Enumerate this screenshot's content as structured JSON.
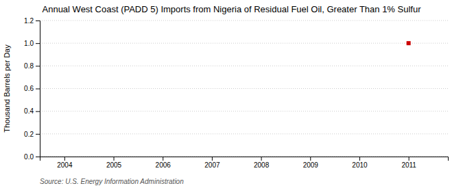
{
  "chart_data": {
    "type": "scatter",
    "title": "Annual West Coast (PADD 5) Imports from Nigeria of Residual Fuel Oil, Greater Than 1% Sulfur",
    "ylabel": "Thousand Barrels per Day",
    "source": "Source: U.S. Energy Information Administration",
    "x": [
      2011
    ],
    "values": [
      1.0
    ],
    "color": "#cc0000",
    "marker": "square",
    "xlim": [
      2003.5,
      2011.8
    ],
    "xticks": [
      2004,
      2005,
      2006,
      2007,
      2008,
      2009,
      2010,
      2011
    ],
    "ylim": [
      0.0,
      1.2
    ],
    "yticks": [
      {
        "value": 0.0,
        "label": "0.0"
      },
      0.2,
      0.4,
      0.6,
      0.8,
      {
        "value": 1.0,
        "label": "1.0"
      },
      1.2
    ],
    "grid": true
  }
}
